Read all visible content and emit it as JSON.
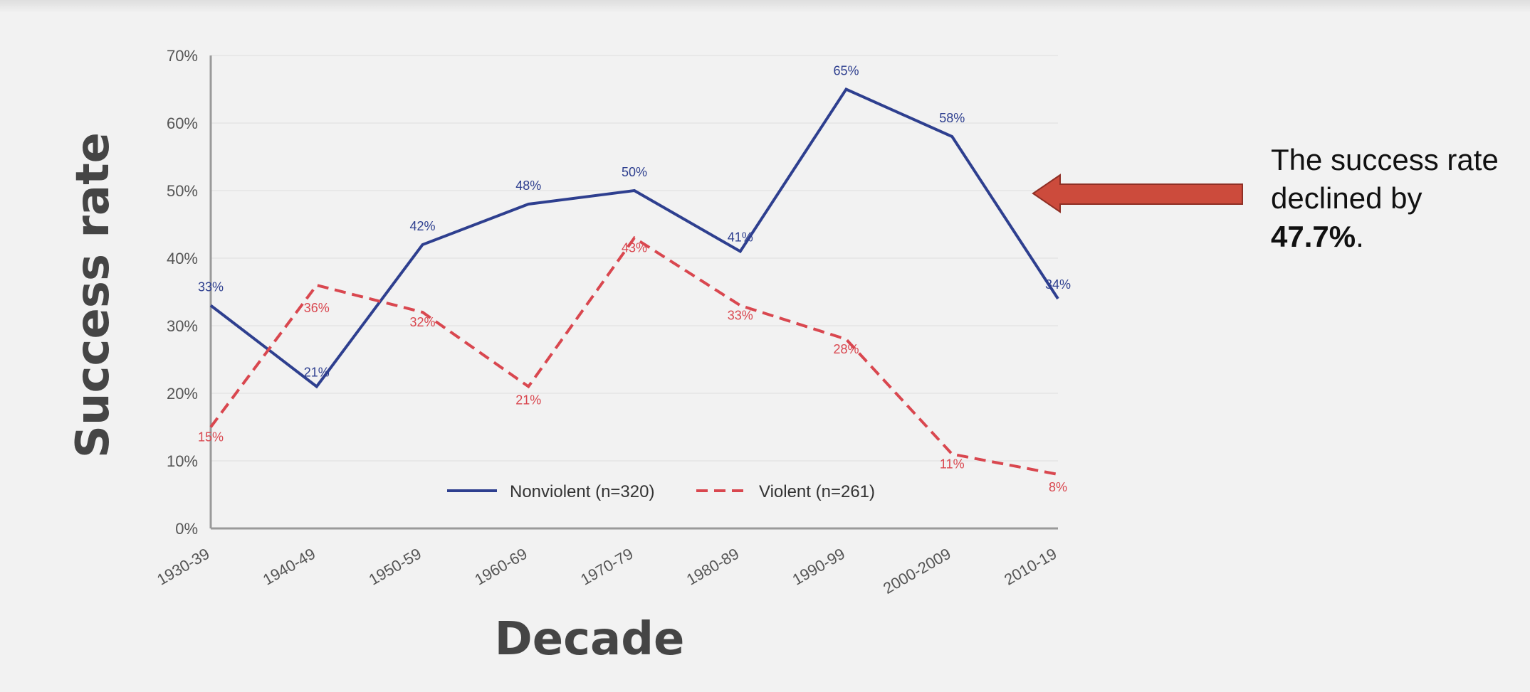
{
  "chart_data": {
    "type": "line",
    "xlabel": "Decade",
    "ylabel": "Success rate",
    "categories": [
      "1930-39",
      "1940-49",
      "1950-59",
      "1960-69",
      "1970-79",
      "1980-89",
      "1990-99",
      "2000-2009",
      "2010-19"
    ],
    "ylim": [
      0,
      70
    ],
    "yticks": [
      "0%",
      "10%",
      "20%",
      "30%",
      "40%",
      "50%",
      "60%",
      "70%"
    ],
    "grid": true,
    "legend_position": "bottom-center",
    "series": [
      {
        "name": "Nonviolent (n=320)",
        "values": [
          33,
          21,
          42,
          48,
          50,
          41,
          65,
          58,
          34
        ],
        "labels": [
          "33%",
          "21%",
          "42%",
          "48%",
          "50%",
          "41%",
          "65%",
          "58%",
          "34%"
        ],
        "color": "#2e3f8f",
        "style": "solid"
      },
      {
        "name": "Violent (n=261)",
        "values": [
          15,
          36,
          32,
          21,
          43,
          33,
          28,
          11,
          8
        ],
        "labels": [
          "15%",
          "36%",
          "32%",
          "21%",
          "43%",
          "33%",
          "28%",
          "11%",
          "8%"
        ],
        "color": "#d9474f",
        "style": "dashed"
      }
    ]
  },
  "annotation": {
    "text_before": "The success rate declined by ",
    "highlight": "47.7%",
    "text_after": ".",
    "arrow_color": "#cc4b3c",
    "arrow_direction": "left"
  }
}
